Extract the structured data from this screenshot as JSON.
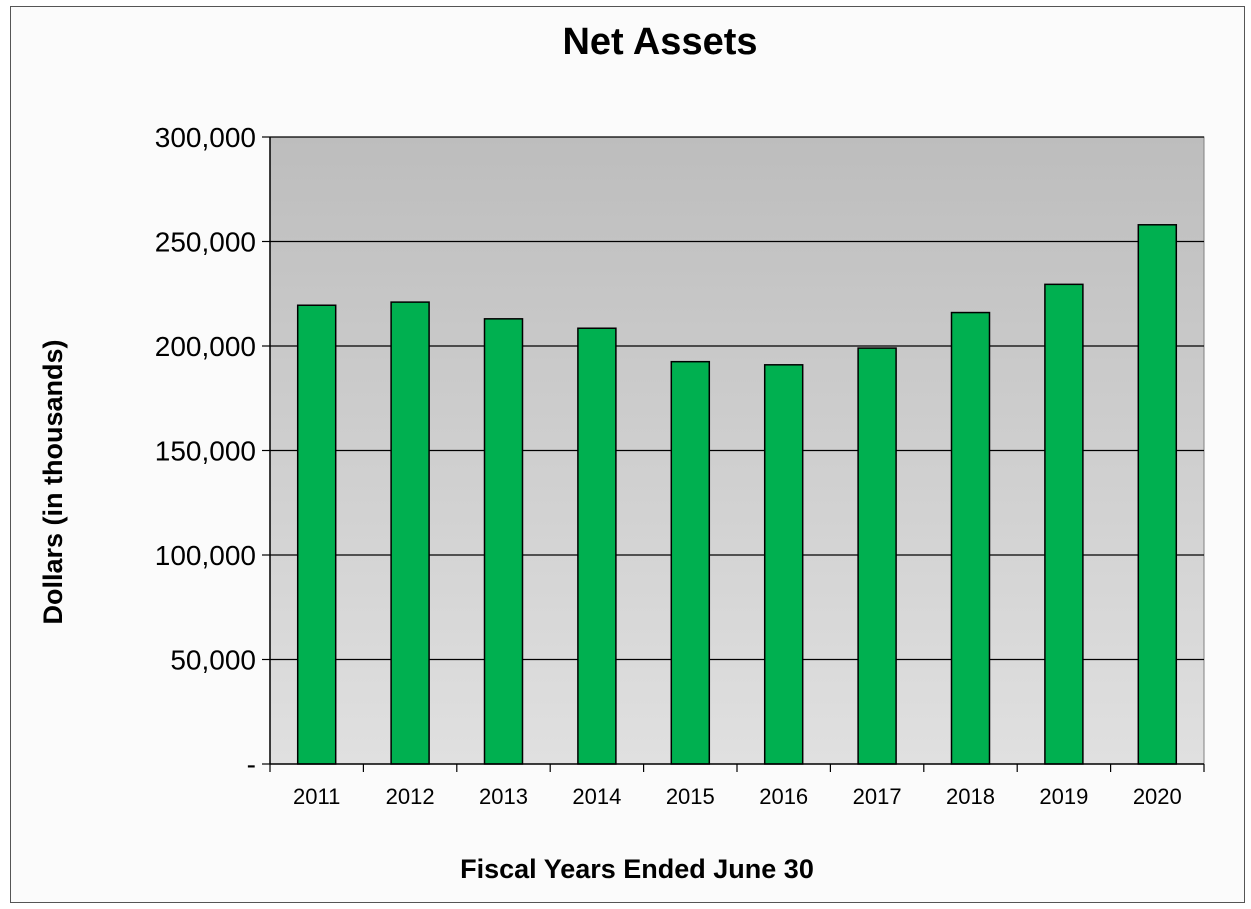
{
  "chart_data": {
    "type": "bar",
    "title": "Net Assets",
    "xlabel": "Fiscal Years Ended June 30",
    "ylabel": "Dollars (in thousands)",
    "categories": [
      "2011",
      "2012",
      "2013",
      "2014",
      "2015",
      "2016",
      "2017",
      "2018",
      "2019",
      "2020"
    ],
    "values": [
      219500,
      221000,
      213000,
      208500,
      192500,
      191000,
      199000,
      216000,
      229500,
      258000
    ],
    "ylim": [
      0,
      300000
    ],
    "yticks": [
      0,
      50000,
      100000,
      150000,
      200000,
      250000,
      300000
    ],
    "ytick_labels": [
      "-",
      "50,000",
      "100,000",
      "150,000",
      "200,000",
      "250,000",
      "300,000"
    ],
    "grid": true,
    "legend": "none",
    "colors": {
      "bar": "#00b050",
      "bar_stroke": "#000000",
      "plot_bg_top": "#bdbdbd",
      "plot_bg_bottom": "#e0e0e0",
      "gridline": "#000000"
    }
  }
}
